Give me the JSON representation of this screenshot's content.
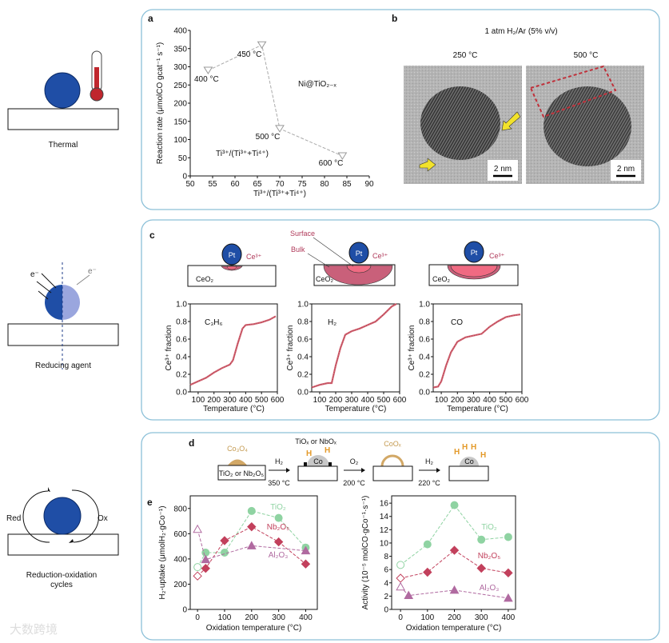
{
  "left_column": {
    "thermal_label": "Thermal",
    "reducing_label": "Reducing agent",
    "electron_left": "e⁻",
    "electron_right": "e⁻",
    "redox_label_line1": "Reduction-oxidation",
    "redox_label_line2": "cycles",
    "red_label": "Red",
    "ox_label": "Ox",
    "watermark": "大数跨境"
  },
  "panel_labels": {
    "a": "a",
    "b": "b",
    "c": "c",
    "d": "d",
    "e": "e"
  },
  "panel_b": {
    "title": "1 atm H₂/Ar (5% v/v)",
    "left_temp": "250 °C",
    "right_temp": "500 °C",
    "scale_left": "2 nm",
    "scale_right": "2 nm"
  },
  "panel_c_schematics": {
    "pt": "Pt",
    "ce3": "Ce³⁺",
    "ceo2": "CeO₂",
    "surface": "Surface",
    "bulk": "Bulk"
  },
  "panel_d": {
    "co3o4": "Co₃O₄",
    "support": "TiO₂ or Nb₂O₅",
    "step1_gas": "H₂",
    "step1_temp": "350 °C",
    "overlayer": "TiOₓ or NbOₓ",
    "co": "Co",
    "step2_gas": "O₂",
    "step2_temp": "200 °C",
    "coox": "CoOₓ",
    "step3_gas": "H₂",
    "step3_temp": "220 °C",
    "h": "H"
  },
  "colors": {
    "panel_border": "#8cc0d8",
    "particle_blue": "#1f4ea6",
    "ce3_red": "#c8506a",
    "tio2": "#8fd3a2",
    "nb2o5": "#c2405c",
    "al2o3": "#b06aa0",
    "hydrogen_orange": "#e39a2a",
    "coox_tan": "#d2a866"
  },
  "chart_data": [
    {
      "type": "line",
      "panel": "a",
      "xlabel": "Ti³⁺/(Ti³⁺+Ti⁴⁺)",
      "ylabel": "Reaction rate (μmolCO gcat⁻¹ s⁻¹)",
      "xlim": [
        50,
        90
      ],
      "ylim": [
        0,
        400
      ],
      "xticks": [
        50,
        55,
        60,
        65,
        70,
        75,
        80,
        85,
        90
      ],
      "yticks": [
        0,
        50,
        100,
        150,
        200,
        250,
        300,
        350,
        400
      ],
      "annotations": [
        "Ni@TiO₂₋ₓ",
        "Ti³⁺/(Ti³⁺+Ti⁴⁺)"
      ],
      "series": [
        {
          "name": "Ni@TiO₂₋ₓ",
          "color": "#999999",
          "marker": "triangle-down-open",
          "x": [
            54,
            66,
            70,
            84
          ],
          "y": [
            290,
            360,
            130,
            55
          ],
          "point_labels": [
            "400 °C",
            "450 °C",
            "500 °C",
            "600 °C"
          ]
        }
      ]
    },
    {
      "type": "line",
      "panel": "c",
      "title": "C₃H₆",
      "xlabel": "Temperature (°C)",
      "ylabel": "Ce³⁺ fraction",
      "xlim": [
        50,
        600
      ],
      "ylim": [
        0,
        1
      ],
      "xticks": [
        100,
        200,
        300,
        400,
        500,
        600
      ],
      "yticks": [
        "0.0",
        "0.2",
        "0.4",
        "0.6",
        "0.8",
        "1.0"
      ],
      "series": [
        {
          "name": "C₃H₆",
          "color": "#d0606e",
          "x": [
            50,
            100,
            150,
            200,
            250,
            300,
            320,
            350,
            380,
            400,
            450,
            500,
            550,
            590
          ],
          "y": [
            0.08,
            0.12,
            0.16,
            0.22,
            0.27,
            0.31,
            0.36,
            0.55,
            0.72,
            0.76,
            0.77,
            0.79,
            0.82,
            0.86
          ]
        }
      ]
    },
    {
      "type": "line",
      "panel": "c",
      "title": "H₂",
      "xlabel": "Temperature (°C)",
      "ylabel": "Ce³⁺ fraction",
      "xlim": [
        50,
        600
      ],
      "ylim": [
        0,
        1
      ],
      "xticks": [
        100,
        200,
        300,
        400,
        500,
        600
      ],
      "yticks": [
        "0.0",
        "0.2",
        "0.4",
        "0.6",
        "0.8",
        "1.0"
      ],
      "series": [
        {
          "name": "H₂",
          "color": "#d0606e",
          "x": [
            50,
            100,
            150,
            175,
            200,
            230,
            260,
            300,
            350,
            400,
            450,
            500,
            550,
            580
          ],
          "y": [
            0.05,
            0.08,
            0.1,
            0.1,
            0.3,
            0.5,
            0.65,
            0.69,
            0.72,
            0.76,
            0.8,
            0.88,
            0.97,
            1.0
          ]
        }
      ]
    },
    {
      "type": "line",
      "panel": "c",
      "title": "CO",
      "xlabel": "Temperature (°C)",
      "ylabel": "Ce³⁺ fraction",
      "xlim": [
        50,
        600
      ],
      "ylim": [
        0,
        1
      ],
      "xticks": [
        100,
        200,
        300,
        400,
        500,
        600
      ],
      "yticks": [
        "0.0",
        "0.2",
        "0.4",
        "0.6",
        "0.8",
        "1.0"
      ],
      "series": [
        {
          "name": "CO",
          "color": "#d0606e",
          "x": [
            50,
            80,
            100,
            130,
            160,
            200,
            250,
            300,
            350,
            400,
            450,
            500,
            550,
            590
          ],
          "y": [
            0.05,
            0.06,
            0.12,
            0.3,
            0.45,
            0.57,
            0.62,
            0.64,
            0.66,
            0.74,
            0.8,
            0.85,
            0.87,
            0.88
          ]
        }
      ]
    },
    {
      "type": "scatter",
      "panel": "e",
      "xlabel": "Oxidation temperature (°C)",
      "ylabel": "H₂-uptake (μmolH₂·gCo⁻¹)",
      "xlim": [
        -27,
        443
      ],
      "ylim": [
        0,
        900
      ],
      "xticks": [
        0,
        100,
        200,
        300,
        400
      ],
      "yticks": [
        0,
        200,
        400,
        600,
        800
      ],
      "series": [
        {
          "name": "TiO₂",
          "color": "#8fd3a2",
          "marker": "circle",
          "open_point": [
            0,
            335
          ],
          "x": [
            30,
            100,
            200,
            300,
            400
          ],
          "y": [
            450,
            450,
            780,
            725,
            490
          ]
        },
        {
          "name": "Nb₂O₅",
          "color": "#c2405c",
          "marker": "diamond",
          "open_point": [
            0,
            265
          ],
          "x": [
            30,
            100,
            200,
            300,
            400
          ],
          "y": [
            325,
            545,
            655,
            535,
            360
          ]
        },
        {
          "name": "Al₂O₃",
          "color": "#b06aa0",
          "marker": "triangle",
          "open_point": [
            0,
            635
          ],
          "x": [
            30,
            200,
            400
          ],
          "y": [
            395,
            505,
            465
          ]
        }
      ]
    },
    {
      "type": "scatter",
      "panel": "e",
      "xlabel": "Oxidation temperature (°C)",
      "ylabel": "Activity (10⁻⁵ molCO·gCo⁻¹·s⁻¹)",
      "xlim": [
        -33,
        427
      ],
      "ylim": [
        0,
        17.1
      ],
      "xticks": [
        0,
        100,
        200,
        300,
        400
      ],
      "yticks": [
        0,
        2,
        4,
        6,
        8,
        10,
        12,
        14,
        16
      ],
      "series": [
        {
          "name": "TiO₂",
          "color": "#8fd3a2",
          "marker": "circle",
          "open_point": [
            0,
            6.7
          ],
          "x": [
            100,
            200,
            300,
            400
          ],
          "y": [
            9.8,
            15.7,
            10.5,
            10.9
          ]
        },
        {
          "name": "Nb₂O₅",
          "color": "#c2405c",
          "marker": "diamond",
          "open_point": [
            0,
            4.7
          ],
          "x": [
            100,
            200,
            300,
            400
          ],
          "y": [
            5.6,
            8.9,
            6.2,
            5.5
          ]
        },
        {
          "name": "Al₂O₃",
          "color": "#b06aa0",
          "marker": "triangle",
          "open_point": [
            0,
            3.4
          ],
          "x": [
            30,
            200,
            400
          ],
          "y": [
            2.1,
            2.9,
            1.7
          ]
        }
      ]
    }
  ]
}
